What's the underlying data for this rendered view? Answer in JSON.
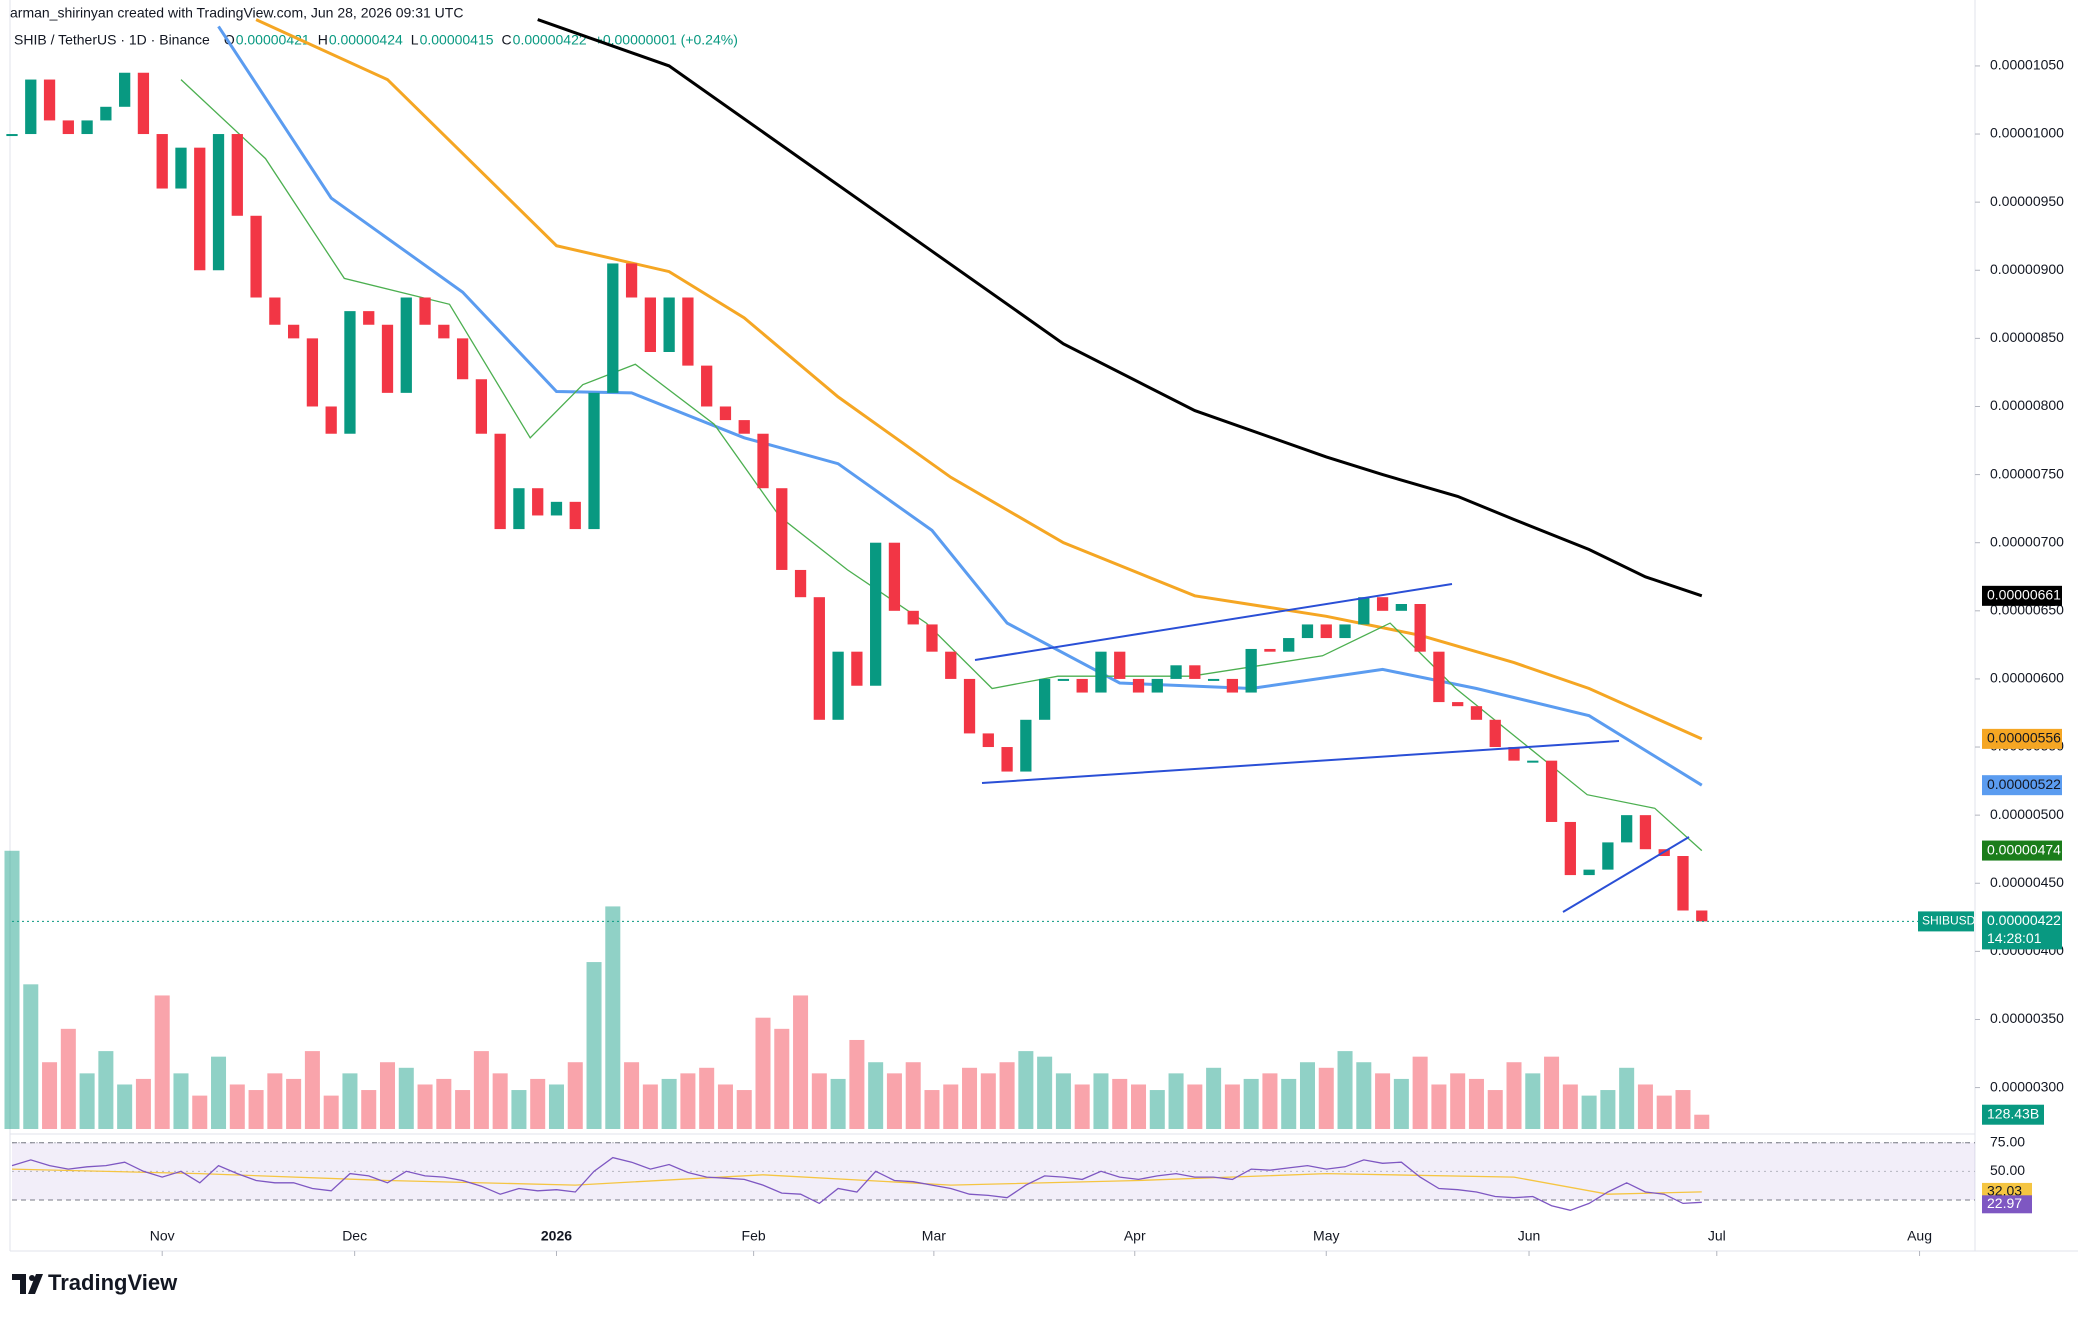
{
  "header": {
    "credit": "arman_shirinyan created with TradingView.com, Jun 28, 2026 09:31 UTC",
    "symbol": "SHIB / TetherUS · 1D · Binance",
    "ohlc": [
      {
        "key": "O",
        "value": "0.00000421"
      },
      {
        "key": "H",
        "value": "0.00000424"
      },
      {
        "key": "L",
        "value": "0.00000415"
      },
      {
        "key": "C",
        "value": "0.00000422"
      }
    ],
    "change": "+0.00000001 (+0.24%)"
  },
  "chart_data": {
    "type": "candlestick",
    "close": [
      1e-05,
      1.04e-05,
      1.01e-05,
      1e-05,
      1.01e-05,
      1.02e-05,
      1.045e-05,
      1e-05,
      9.6e-06,
      9.9e-06,
      9e-06,
      1e-05,
      9.4e-06,
      8.8e-06,
      8.6e-06,
      8.5e-06,
      8e-06,
      7.8e-06,
      8.7e-06,
      8.6e-06,
      8.1e-06,
      8.8e-06,
      8.6e-06,
      8.5e-06,
      8.2e-06,
      7.8e-06,
      7.1e-06,
      7.4e-06,
      7.2e-06,
      7.3e-06,
      7.1e-06,
      8.1e-06,
      9.05e-06,
      8.8e-06,
      8.4e-06,
      8.8e-06,
      8.3e-06,
      8e-06,
      7.9e-06,
      7.8e-06,
      7.4e-06,
      6.8e-06,
      6.6e-06,
      5.7e-06,
      6.2e-06,
      5.95e-06,
      7e-06,
      6.5e-06,
      6.4e-06,
      6.2e-06,
      6e-06,
      5.6e-06,
      5.5e-06,
      5.32e-06,
      5.7e-06,
      6e-06,
      6e-06,
      5.9e-06,
      6.2e-06,
      6e-06,
      5.9e-06,
      6e-06,
      6.1e-06,
      6e-06,
      6e-06,
      5.9e-06,
      6.22e-06,
      6.2e-06,
      6.3e-06,
      6.4e-06,
      6.3e-06,
      6.4e-06,
      6.6e-06,
      6.5e-06,
      6.55e-06,
      6.2e-06,
      5.83e-06,
      5.8e-06,
      5.7e-06,
      5.5e-06,
      5.4e-06,
      5.4e-06,
      4.95e-06,
      4.56e-06,
      4.6e-06,
      4.8e-06,
      5e-06,
      4.75e-06,
      4.7e-06,
      4.3e-06,
      4.22e-06
    ],
    "colors": {
      "up": "#089981",
      "down": "#f23645"
    },
    "xlim": [
      0,
      104.5
    ],
    "xticks": [
      {
        "value": 8,
        "label": "Nov"
      },
      {
        "value": 18.25,
        "label": "Dec"
      },
      {
        "value": 29,
        "label": "2026"
      },
      {
        "value": 39.5,
        "label": "Feb"
      },
      {
        "value": 49.1,
        "label": "Mar"
      },
      {
        "value": 59.8,
        "label": "Apr"
      },
      {
        "value": 70,
        "label": "May"
      },
      {
        "value": 80.8,
        "label": "Jun"
      },
      {
        "value": 90.8,
        "label": "Jul"
      },
      {
        "value": 101.6,
        "label": "Aug"
      }
    ],
    "ylim": [
      2.696e-06,
      1.0984e-05
    ],
    "yticks": [
      {
        "value": 3e-06,
        "label": "0.00000300"
      },
      {
        "value": 3.5e-06,
        "label": "0.00000350"
      },
      {
        "value": 4e-06,
        "label": "0.00000400"
      },
      {
        "value": 4.5e-06,
        "label": "0.00000450"
      },
      {
        "value": 5e-06,
        "label": "0.00000500"
      },
      {
        "value": 5.5e-06,
        "label": "0.00000550"
      },
      {
        "value": 6e-06,
        "label": "0.00000600"
      },
      {
        "value": 6.5e-06,
        "label": "0.00000650"
      },
      {
        "value": 7e-06,
        "label": "0.00000700"
      },
      {
        "value": 7.5e-06,
        "label": "0.00000750"
      },
      {
        "value": 8e-06,
        "label": "0.00000800"
      },
      {
        "value": 8.5e-06,
        "label": "0.00000850"
      },
      {
        "value": 9e-06,
        "label": "0.00000900"
      },
      {
        "value": 9.5e-06,
        "label": "0.00000950"
      },
      {
        "value": 1e-05,
        "label": "0.00001000"
      },
      {
        "value": 1.05e-05,
        "label": "0.00001050"
      }
    ],
    "grid": false,
    "moving_averages": [
      {
        "color": "#000000",
        "label_text": "#ffffff",
        "x": [
          28,
          35,
          42,
          49,
          56,
          63,
          70,
          73,
          77,
          80,
          84,
          87,
          90
        ],
        "values": [
          1.084e-05,
          1.05e-05,
          9.82e-06,
          9.14e-06,
          8.46e-06,
          7.97e-06,
          7.63e-06,
          7.5e-06,
          7.34e-06,
          7.17e-06,
          6.95e-06,
          6.75e-06,
          6.61e-06
        ],
        "last_label": "0.00000661"
      },
      {
        "color": "#f5a623",
        "label_text": "#131722",
        "x": [
          13,
          20,
          29,
          35,
          39,
          44,
          50,
          56,
          63,
          70,
          75,
          80,
          84,
          90
        ],
        "values": [
          1.084e-05,
          1.04e-05,
          9.18e-06,
          8.99e-06,
          8.65e-06,
          8.07e-06,
          7.48e-06,
          7e-06,
          6.61e-06,
          6.46e-06,
          6.32e-06,
          6.12e-06,
          5.93e-06,
          5.56e-06
        ],
        "last_label": "0.00000556"
      },
      {
        "color": "#5b9cf0",
        "label_text": "#131722",
        "x": [
          11,
          17,
          24,
          29,
          33,
          39,
          44,
          49,
          53,
          59,
          66,
          73,
          78,
          84,
          90
        ],
        "values": [
          1.079e-05,
          9.53e-06,
          8.84e-06,
          8.11e-06,
          8.1e-06,
          7.77e-06,
          7.58e-06,
          7.09e-06,
          6.41e-06,
          5.97e-06,
          5.93e-06,
          6.07e-06,
          5.93e-06,
          5.73e-06,
          5.22e-06
        ],
        "last_label": "0.00000522"
      },
      {
        "color": "#4caf50",
        "label_text": "#ffffff",
        "x": [
          9,
          13.5,
          17.7,
          23.3,
          27.6,
          30.4,
          33.2,
          37.4,
          40.9,
          44.5,
          48.7,
          52.2,
          55.7,
          62.8,
          69.8,
          73.4,
          76.9,
          80.4,
          83.9,
          87.5,
          90
        ],
        "values": [
          1.04e-05,
          9.82e-06,
          8.94e-06,
          8.75e-06,
          7.77e-06,
          8.16e-06,
          8.31e-06,
          7.87e-06,
          7.19e-06,
          6.8e-06,
          6.41e-06,
          5.93e-06,
          6.02e-06,
          6.02e-06,
          6.17e-06,
          6.41e-06,
          5.93e-06,
          5.54e-06,
          5.15e-06,
          5.05e-06,
          4.74e-06
        ],
        "last_label": "0.00000474"
      }
    ],
    "last_price": {
      "symbol": "SHIBUSDT",
      "value": 4.22e-06,
      "label": "0.00000422",
      "countdown": "14:28:01"
    },
    "volume": {
      "ylim": [
        0,
        3100
      ],
      "last_label": "128.43B",
      "values": [
        2500,
        1300,
        600,
        900,
        500,
        700,
        400,
        450,
        1200,
        500,
        300,
        650,
        400,
        350,
        500,
        450,
        700,
        300,
        500,
        350,
        600,
        550,
        400,
        450,
        350,
        700,
        500,
        350,
        450,
        400,
        600,
        1500,
        2000,
        600,
        400,
        450,
        500,
        550,
        400,
        350,
        1000,
        900,
        1200,
        500,
        450,
        800,
        600,
        500,
        600,
        350,
        400,
        550,
        500,
        600,
        700,
        650,
        500,
        400,
        500,
        450,
        400,
        350,
        500,
        400,
        550,
        400,
        450,
        500,
        450,
        600,
        550,
        700,
        600,
        500,
        450,
        650,
        400,
        500,
        450,
        350,
        600,
        500,
        650,
        400,
        300,
        350,
        550,
        400,
        300,
        350,
        128.43
      ]
    },
    "rsi": {
      "color": "#7e57c2",
      "ylim": [
        11,
        80
      ],
      "band": [
        25,
        75
      ],
      "yticks": [
        {
          "value": 75,
          "label": "75.00"
        },
        {
          "value": 50,
          "label": "50.00"
        }
      ],
      "values": [
        55,
        60,
        55,
        52,
        54,
        55,
        58,
        50,
        45,
        50,
        40,
        55,
        48,
        42,
        40,
        40,
        35,
        33,
        48,
        46,
        40,
        50,
        46,
        45,
        42,
        37,
        30,
        35,
        33,
        34,
        32,
        50,
        62,
        58,
        52,
        56,
        49,
        45,
        44,
        43,
        38,
        31,
        30,
        22,
        35,
        32,
        50,
        42,
        41,
        38,
        35,
        30,
        29,
        27,
        38,
        46,
        45,
        43,
        50,
        45,
        43,
        46,
        48,
        45,
        45,
        43,
        52,
        51,
        53,
        55,
        52,
        54,
        60,
        57,
        58,
        45,
        35,
        34,
        32,
        28,
        27,
        28,
        20,
        16,
        22,
        32,
        40,
        32,
        30,
        22,
        22.97
      ],
      "last_label": "22.97",
      "ma": {
        "color": "#f5c542",
        "x": [
          0,
          10,
          20,
          30,
          40,
          50,
          60,
          70,
          80,
          85,
          90
        ],
        "values": [
          52,
          48,
          42,
          38,
          47,
          38,
          42,
          48,
          45,
          30,
          32.03
        ],
        "last_label": "32.03"
      }
    }
  },
  "footer": {
    "brand": "TradingView"
  }
}
